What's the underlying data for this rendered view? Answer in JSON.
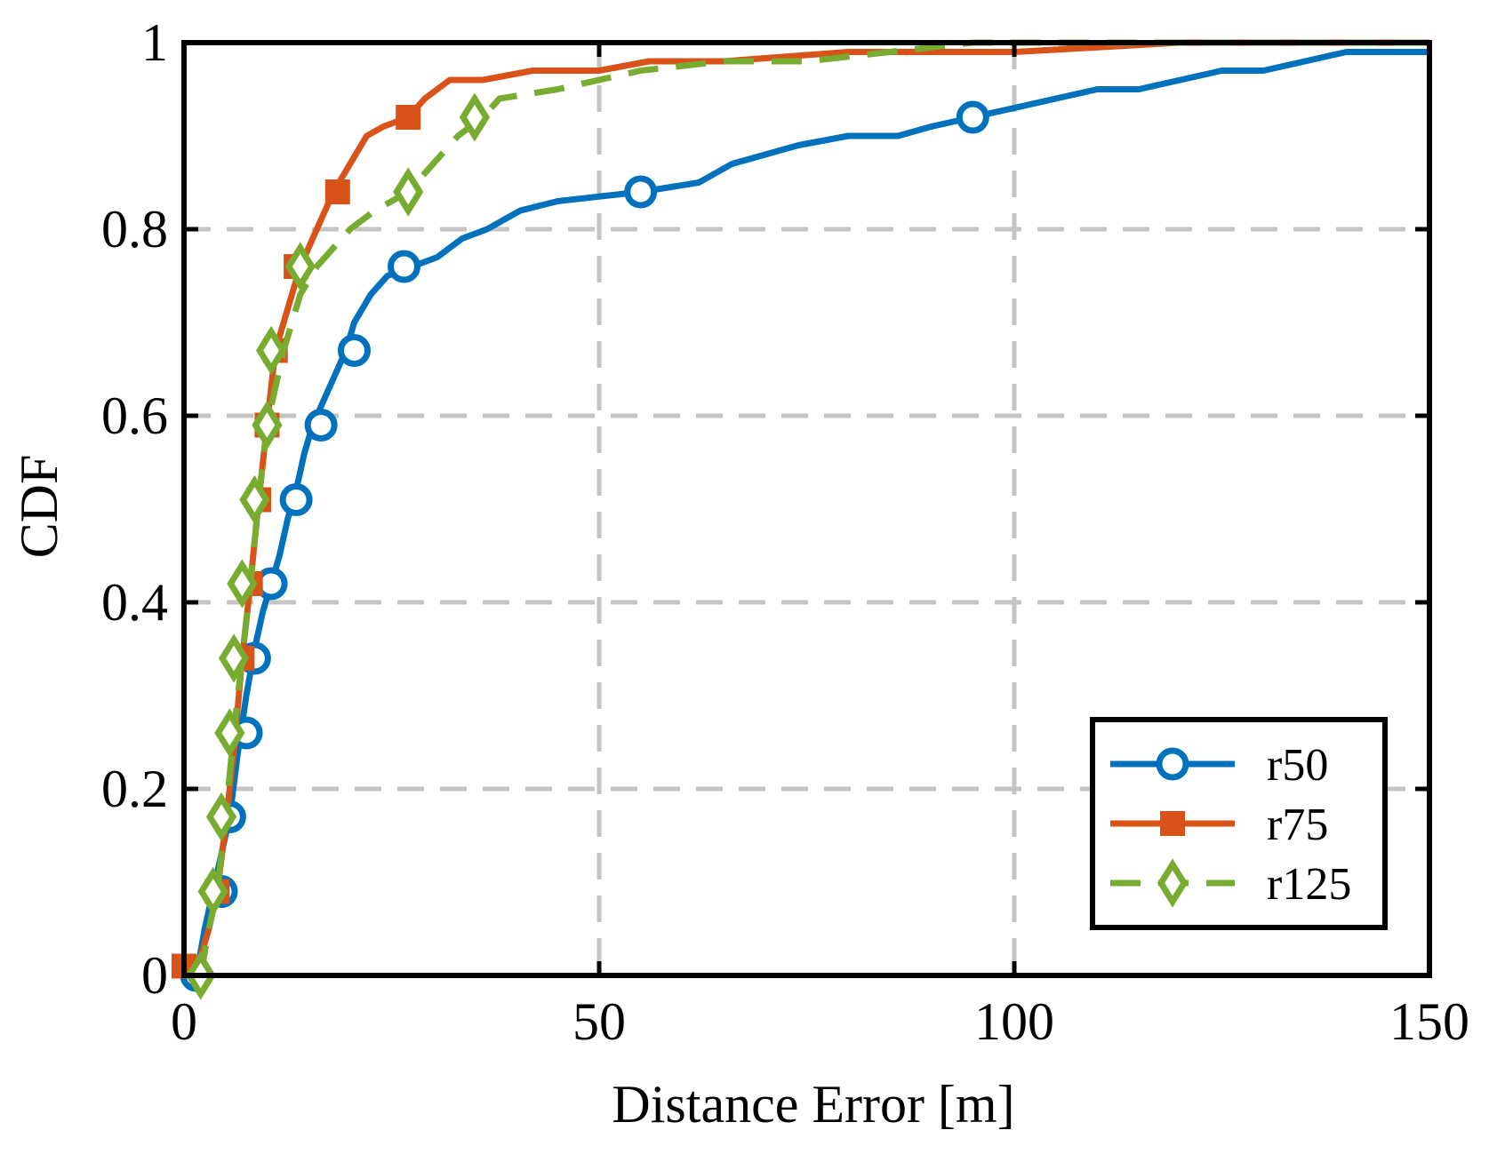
{
  "chart_data": {
    "type": "line",
    "title": "",
    "xlabel": "Distance Error [m]",
    "ylabel": "CDF",
    "xlim": [
      0,
      150
    ],
    "ylim": [
      0,
      1
    ],
    "xticks": [
      "0",
      "50",
      "100",
      "150"
    ],
    "yticks": [
      "0",
      "0.2",
      "0.4",
      "0.6",
      "0.8",
      "1"
    ],
    "grid": true,
    "legend_position": "bottom-right",
    "series": [
      {
        "name": "r50",
        "color": "#0072BD",
        "line_style": "solid",
        "marker": "circle",
        "x": [
          1.5,
          2.5,
          3.5,
          4.5,
          5.5,
          6.5,
          7.5,
          8.5,
          9.5,
          10.5,
          11.5,
          12.5,
          13.5,
          14.5,
          15.5,
          16.5,
          17.5,
          18.5,
          19.5,
          20.5,
          22.5,
          24.5,
          27.5,
          30.5,
          33.5,
          36.5,
          38.5,
          40.5,
          45,
          55,
          62,
          66,
          70,
          74,
          80,
          86,
          90,
          95,
          100,
          105,
          110,
          115,
          120,
          125,
          130,
          135,
          140,
          145,
          150
        ],
        "y": [
          0.0,
          0.05,
          0.09,
          0.13,
          0.17,
          0.24,
          0.3,
          0.35,
          0.39,
          0.42,
          0.45,
          0.49,
          0.52,
          0.56,
          0.59,
          0.61,
          0.63,
          0.65,
          0.67,
          0.7,
          0.73,
          0.75,
          0.76,
          0.77,
          0.79,
          0.8,
          0.81,
          0.82,
          0.83,
          0.84,
          0.85,
          0.87,
          0.88,
          0.89,
          0.9,
          0.9,
          0.91,
          0.92,
          0.93,
          0.94,
          0.95,
          0.95,
          0.96,
          0.97,
          0.97,
          0.98,
          0.99,
          0.99,
          0.99
        ],
        "marker_x": [
          1.5,
          4.5,
          5.5,
          7.5,
          8.5,
          10.5,
          13.5,
          16.5,
          20.5,
          26.5,
          55,
          95
        ],
        "marker_y": [
          0.0,
          0.09,
          0.17,
          0.26,
          0.34,
          0.42,
          0.51,
          0.59,
          0.67,
          0.76,
          0.84,
          0.92
        ]
      },
      {
        "name": "r75",
        "color": "#D95319",
        "line_style": "solid",
        "marker": "square",
        "x": [
          0,
          2,
          3,
          4,
          5,
          6,
          7,
          8,
          9,
          10,
          11,
          12,
          13,
          14,
          16,
          18,
          20,
          22,
          24,
          27,
          29,
          32,
          36,
          42,
          50,
          56,
          65,
          80,
          100,
          120,
          150
        ],
        "y": [
          0.01,
          0.02,
          0.05,
          0.09,
          0.16,
          0.24,
          0.34,
          0.42,
          0.51,
          0.59,
          0.67,
          0.7,
          0.73,
          0.76,
          0.8,
          0.84,
          0.87,
          0.9,
          0.91,
          0.92,
          0.94,
          0.96,
          0.96,
          0.97,
          0.97,
          0.98,
          0.98,
          0.99,
          0.99,
          1.0,
          1.0
        ],
        "marker_x": [
          0,
          4,
          7,
          8,
          9,
          10,
          11,
          13.5,
          18.5,
          27
        ],
        "marker_y": [
          0.01,
          0.09,
          0.34,
          0.42,
          0.51,
          0.59,
          0.67,
          0.76,
          0.84,
          0.92
        ]
      },
      {
        "name": "r125",
        "color": "#77AC30",
        "line_style": "dashed",
        "marker": "diamond",
        "x": [
          2,
          3,
          4,
          5,
          6,
          7,
          8,
          9,
          10,
          12,
          14,
          16,
          18,
          20,
          23,
          27,
          30,
          33,
          36,
          38,
          45,
          50,
          55,
          65,
          75,
          85,
          95,
          110,
          150
        ],
        "y": [
          0.0,
          0.05,
          0.09,
          0.17,
          0.26,
          0.34,
          0.42,
          0.51,
          0.59,
          0.67,
          0.73,
          0.76,
          0.78,
          0.8,
          0.82,
          0.84,
          0.87,
          0.9,
          0.92,
          0.94,
          0.95,
          0.96,
          0.97,
          0.98,
          0.98,
          0.99,
          1.0,
          1.0,
          1.0
        ],
        "marker_x": [
          2,
          3.5,
          4.5,
          5.5,
          6,
          7,
          8.5,
          10,
          10.5,
          14,
          27,
          35
        ],
        "marker_y": [
          0.0,
          0.09,
          0.17,
          0.26,
          0.34,
          0.42,
          0.51,
          0.59,
          0.67,
          0.76,
          0.84,
          0.92
        ]
      }
    ]
  }
}
